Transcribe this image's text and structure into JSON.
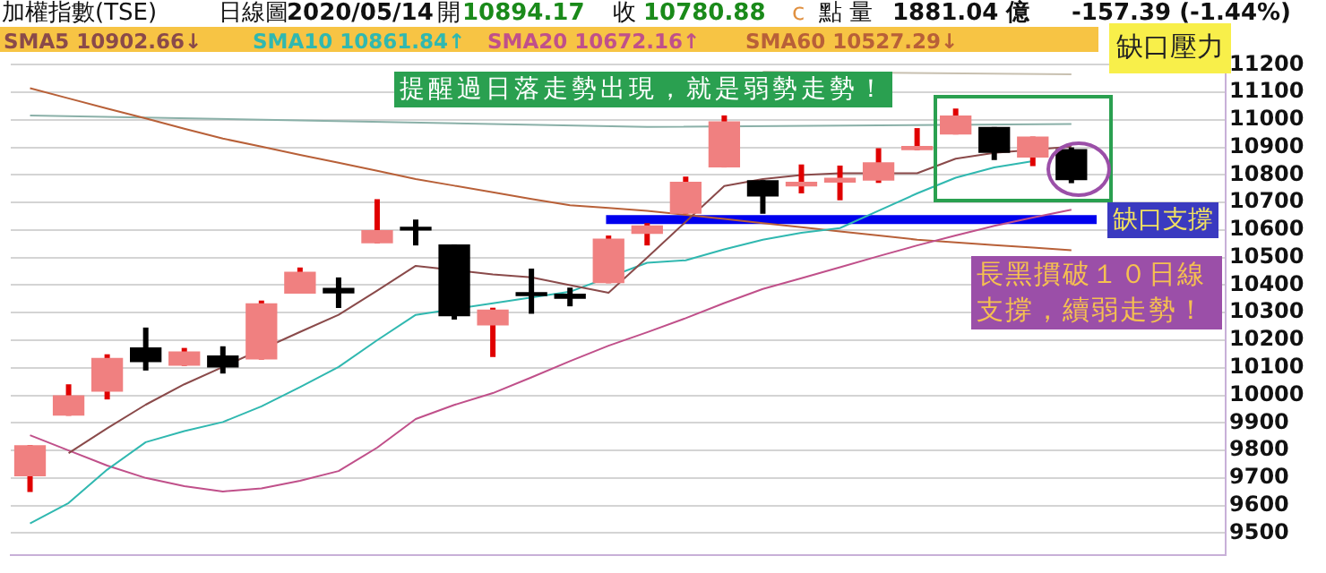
{
  "chart_data": {
    "type": "candlestick",
    "title": "加權指數(TSE)",
    "subtitle": "日線圖",
    "categories": [
      null,
      null,
      null,
      null,
      null,
      null,
      null,
      null,
      null,
      null,
      null,
      null,
      null,
      null,
      null,
      null,
      null,
      null,
      null,
      null,
      null,
      null,
      null,
      null,
      null,
      null,
      null,
      null
    ],
    "ohlc": [
      [
        9706,
        9819,
        9649,
        9819
      ],
      [
        9926,
        10040,
        9926,
        10000
      ],
      [
        10013,
        10149,
        9985,
        10136
      ],
      [
        10174,
        10246,
        10090,
        10120
      ],
      [
        10107,
        10172,
        10107,
        10159
      ],
      [
        10145,
        10178,
        10079,
        10101
      ],
      [
        10130,
        10344,
        10130,
        10334
      ],
      [
        10369,
        10464,
        10369,
        10449
      ],
      [
        10390,
        10428,
        10317,
        10370
      ],
      [
        10552,
        10712,
        10552,
        10600
      ],
      [
        10612,
        10638,
        10544,
        10598
      ],
      [
        10548,
        10548,
        10275,
        10287
      ],
      [
        10254,
        10318,
        10139,
        10311
      ],
      [
        10375,
        10460,
        10296,
        10360
      ],
      [
        10369,
        10391,
        10323,
        10350
      ],
      [
        10407,
        10580,
        10407,
        10569
      ],
      [
        10586,
        10625,
        10544,
        10617
      ],
      [
        10659,
        10794,
        10659,
        10775
      ],
      [
        10827,
        11016,
        10827,
        10995
      ],
      [
        10781,
        10781,
        10659,
        10722
      ],
      [
        10758,
        10838,
        10733,
        10775
      ],
      [
        10772,
        10834,
        10708,
        10790
      ],
      [
        10779,
        10897,
        10771,
        10846
      ],
      [
        10890,
        10970,
        10890,
        10905
      ],
      [
        10947,
        11041,
        10947,
        11016
      ],
      [
        10974,
        10974,
        10854,
        10880
      ],
      [
        10863,
        10939,
        10832,
        10939
      ],
      [
        10894,
        10900,
        10770,
        10781
      ]
    ],
    "series": [
      {
        "type": "line",
        "name": "SMA5 10902.66↓",
        "color": "#8a4a4a",
        "values": [
          null,
          9790,
          9880,
          9966,
          10040,
          10103,
          null,
          10230,
          10292,
          10380,
          10470,
          null,
          10439,
          10428,
          10400,
          10372,
          10500,
          null,
          10760,
          10785,
          10800,
          10806,
          null,
          10806,
          10859,
          10880,
          null,
          10903
        ]
      },
      {
        "type": "line",
        "name": "SMA10 10861.84↑",
        "color": "#30b8b0",
        "values": [
          9535,
          9609,
          9730,
          9830,
          9870,
          9903,
          9960,
          10030,
          10103,
          10200,
          10292,
          null,
          10334,
          10355,
          10376,
          null,
          10481,
          10490,
          10530,
          10565,
          10590,
          10607,
          10670,
          10733,
          10790,
          10827,
          10850,
          null
        ]
      },
      {
        "type": "line",
        "name": "SMA20 10672.16↑",
        "color": "#c0508a",
        "values": [
          9855,
          9800,
          9745,
          9700,
          9670,
          9651,
          9662,
          9690,
          9725,
          9810,
          9914,
          9965,
          10008,
          10065,
          10124,
          10180,
          10229,
          10280,
          10335,
          10386,
          10425,
          10465,
          10505,
          10544,
          10580,
          10615,
          10645,
          10674
        ]
      },
      {
        "type": "line",
        "name": "SMA60 10527.29↓",
        "color": "#b86038",
        "values": [
          11115,
          11078,
          11041,
          11005,
          10968,
          10932,
          10903,
          10873,
          10844,
          10815,
          10785,
          10761,
          10737,
          10713,
          10690,
          10680,
          10670,
          10655,
          10640,
          10625,
          10610,
          10595,
          10580,
          10565,
          10555,
          10545,
          10536,
          10527
        ]
      },
      {
        "type": "line",
        "color": "#8ab0a8",
        "values": [
          11016,
          null,
          null,
          null,
          null,
          null,
          null,
          null,
          null,
          null,
          null,
          null,
          null,
          null,
          null,
          null,
          10974,
          null,
          null,
          null,
          null,
          null,
          null,
          null,
          null,
          null,
          null,
          10985
        ]
      },
      {
        "type": "line",
        "color": "#c8c0b0",
        "values": [
          null,
          null,
          null,
          null,
          null,
          null,
          null,
          null,
          null,
          null,
          null,
          null,
          null,
          null,
          null,
          null,
          null,
          null,
          null,
          11175,
          null,
          null,
          null,
          null,
          null,
          null,
          null,
          11165
        ]
      }
    ],
    "ylim": [
      9420,
      11240
    ],
    "yticks": [
      9500,
      9600,
      9700,
      9800,
      9900,
      10000,
      10100,
      10200,
      10300,
      10400,
      10500,
      10600,
      10700,
      10800,
      10900,
      11000,
      11100,
      11200
    ],
    "grid": "y",
    "legend": "top",
    "tick_labels": "y",
    "ref_lines": [
      {
        "axis": "y",
        "value": 10638,
        "label": "缺口支撐",
        "color": "#0000ee"
      }
    ],
    "annotations": [
      "2020/05/14",
      "開",
      "10894.17",
      "收",
      "10780.88",
      "c",
      "點 量",
      "1881.04 億",
      "-157.39 (-1.44%)",
      "缺口壓力",
      "提醒過日落走勢出現，就是弱勢走勢！",
      "長黑摜破１０日線支撐，續弱走勢！"
    ]
  }
}
